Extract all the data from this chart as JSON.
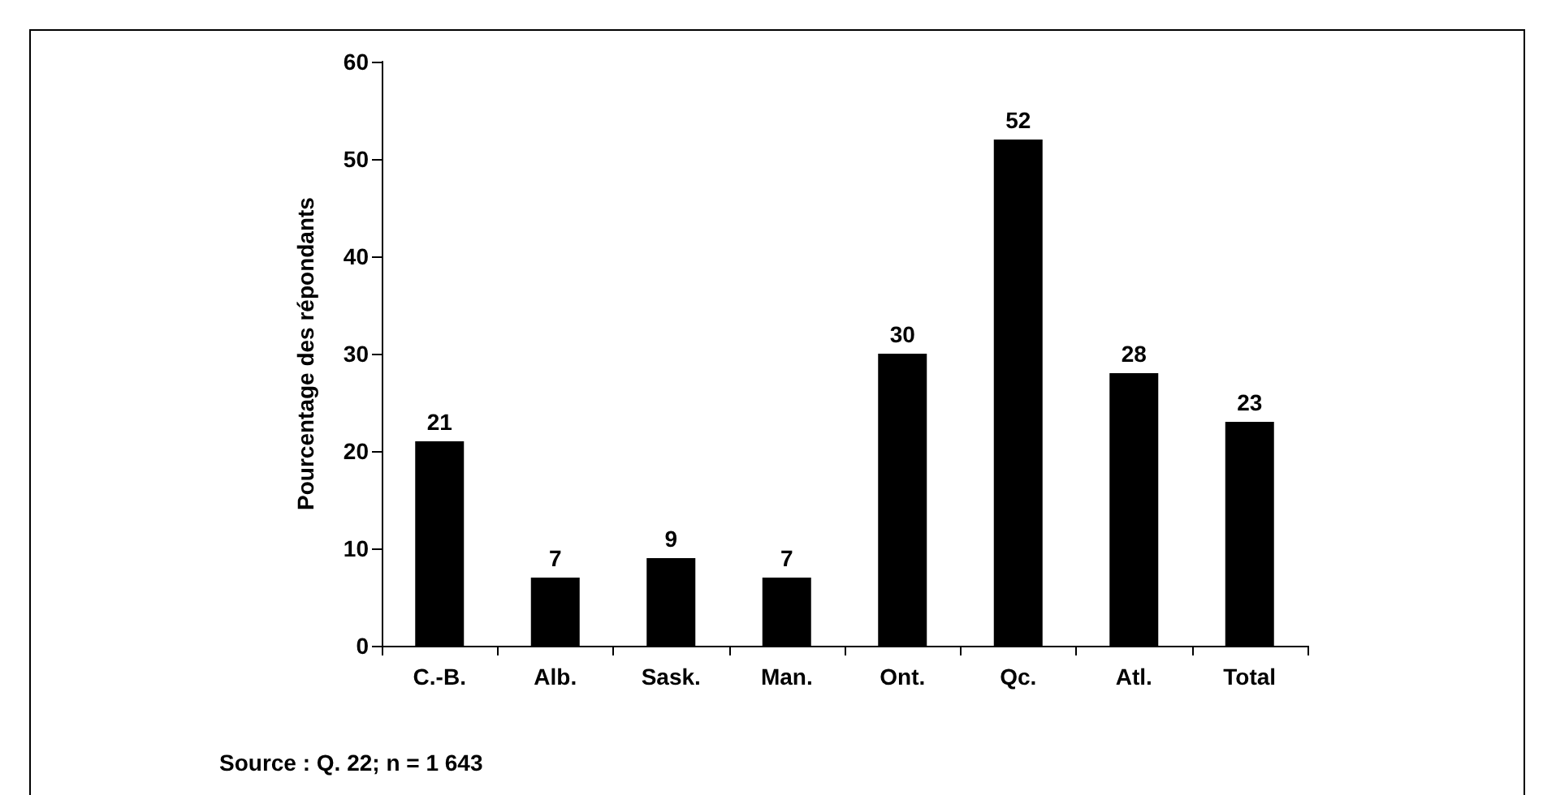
{
  "chart_data": {
    "type": "bar",
    "ylabel": "Pourcentage des répondants",
    "categories": [
      "C.-B.",
      "Alb.",
      "Sask.",
      "Man.",
      "Ont.",
      "Qc.",
      "Atl.",
      "Total"
    ],
    "values": [
      21,
      7,
      9,
      7,
      30,
      52,
      28,
      23
    ],
    "color": "#000000",
    "ylim": [
      0,
      60
    ],
    "yticks": [
      0,
      10,
      20,
      30,
      40,
      50,
      60
    ],
    "grid": false,
    "data_labels": true,
    "annotations": [
      "Source : Q. 22; n = 1 643"
    ]
  }
}
